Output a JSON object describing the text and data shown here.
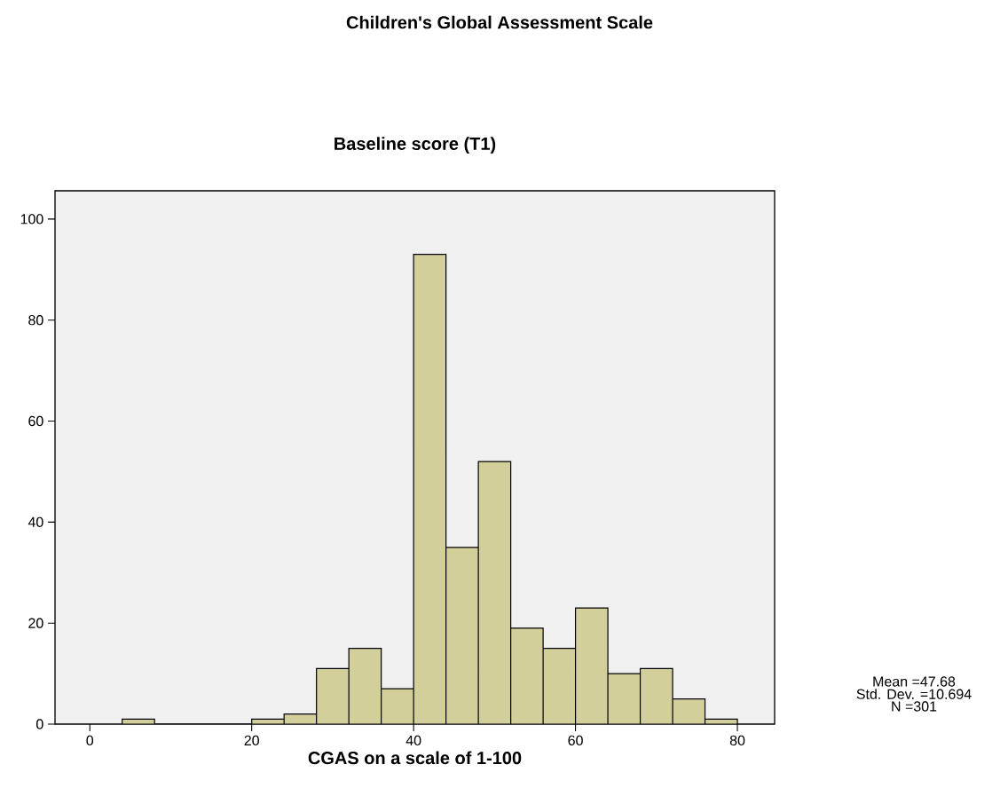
{
  "chart_data": {
    "type": "histogram",
    "title": "Children's Global Assessment Scale",
    "subtitle": "Baseline score (T1)",
    "xlabel": "CGAS on a scale of 1-100",
    "bins": [
      4,
      8,
      12,
      16,
      20,
      24,
      28,
      32,
      36,
      40,
      44,
      48,
      52,
      56,
      60,
      64,
      68,
      72,
      76,
      80
    ],
    "values": [
      1,
      0,
      0,
      0,
      1,
      2,
      11,
      15,
      7,
      93,
      35,
      52,
      19,
      15,
      23,
      10,
      11,
      5,
      1
    ],
    "color": "#d3cf9b",
    "xlim": [
      -4.3,
      84.6
    ],
    "ylim": [
      0,
      105.6
    ],
    "xticks": [
      0,
      20,
      40,
      60,
      80
    ],
    "yticks": [
      0,
      20,
      40,
      60,
      80,
      100
    ],
    "annotations": [
      "Mean =47.68",
      "Std. Dev. =10.694",
      "N =301"
    ]
  }
}
